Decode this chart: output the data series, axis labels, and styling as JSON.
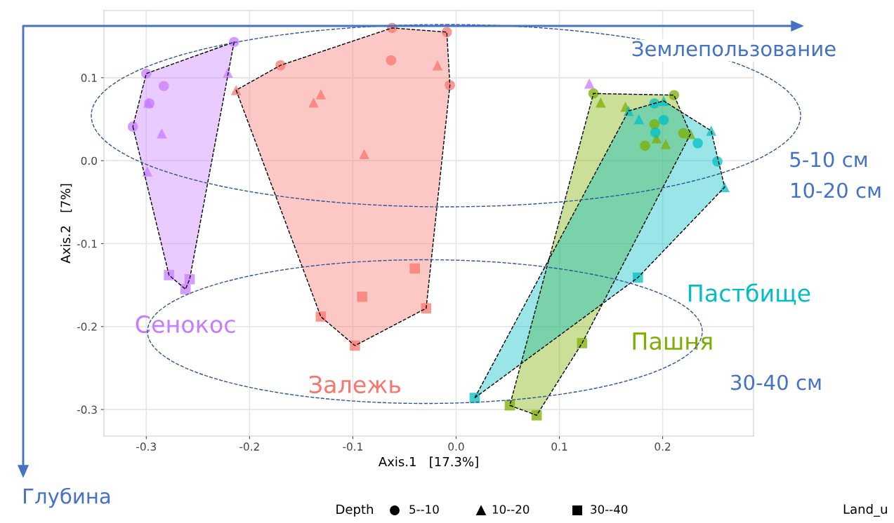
{
  "chart_data": {
    "type": "scatter",
    "xlabel": "Axis.1   [17.3%]",
    "ylabel": "Axis.2   [7%]",
    "xlim": [
      -0.341,
      0.288
    ],
    "ylim": [
      -0.332,
      0.181
    ],
    "xticks": [
      {
        "value": -0.3,
        "label": "-0.3"
      },
      {
        "value": -0.2,
        "label": "-0.2"
      },
      {
        "value": -0.1,
        "label": "-0.1"
      },
      {
        "value": 0.0,
        "label": "0.0"
      },
      {
        "value": 0.1,
        "label": "0.1"
      },
      {
        "value": 0.2,
        "label": "0.2"
      }
    ],
    "yticks": [
      {
        "value": -0.3,
        "label": "-0.3"
      },
      {
        "value": -0.2,
        "label": "-0.2"
      },
      {
        "value": -0.1,
        "label": "-0.1"
      },
      {
        "value": 0.0,
        "label": "0.0"
      },
      {
        "value": 0.1,
        "label": "0.1"
      }
    ],
    "grid": true,
    "series": [
      {
        "color": "#c77cff",
        "marker": "circle",
        "x": [
          -0.215,
          -0.3,
          -0.283,
          -0.297,
          -0.313
        ],
        "values": [
          0.143,
          0.105,
          0.09,
          0.069,
          0.041
        ]
      },
      {
        "color": "#c77cff",
        "marker": "triangle",
        "x": [
          -0.221,
          -0.298,
          -0.285,
          -0.299
        ],
        "values": [
          0.106,
          0.07,
          0.033,
          -0.013
        ]
      },
      {
        "name": "Сенокос",
        "color": "#c77cff",
        "marker": "square",
        "x": [
          -0.278,
          -0.258,
          -0.262
        ],
        "values": [
          -0.138,
          -0.143,
          -0.155
        ]
      },
      {
        "color": "#c77cff",
        "marker": "triangle",
        "x": [
          0.129
        ],
        "values": [
          0.093
        ]
      },
      {
        "color": "#f8766d",
        "marker": "circle",
        "x": [
          -0.062,
          -0.009,
          -0.063,
          -0.006,
          -0.17
        ],
        "values": [
          0.16,
          0.155,
          0.121,
          0.091,
          0.115
        ]
      },
      {
        "color": "#f8766d",
        "marker": "triangle",
        "x": [
          -0.018,
          -0.213,
          -0.131,
          -0.138,
          -0.089
        ],
        "values": [
          0.115,
          0.085,
          0.08,
          0.07,
          0.008
        ]
      },
      {
        "name": "Залежь",
        "color": "#f8766d",
        "marker": "square",
        "x": [
          -0.04,
          -0.091,
          -0.029,
          -0.131,
          -0.098
        ],
        "values": [
          -0.13,
          -0.164,
          -0.178,
          -0.188,
          -0.223
        ]
      },
      {
        "color": "#7cae00",
        "marker": "circle",
        "x": [
          0.133,
          0.211,
          0.192,
          0.22,
          0.183
        ],
        "values": [
          0.081,
          0.079,
          0.044,
          0.033,
          0.018
        ]
      },
      {
        "color": "#7cae00",
        "marker": "triangle",
        "x": [
          0.14,
          0.164,
          0.227,
          0.203,
          0.194
        ],
        "values": [
          0.07,
          0.065,
          0.032,
          0.02,
          0.027
        ]
      },
      {
        "name": "Пашня",
        "color": "#7cae00",
        "marker": "square",
        "x": [
          0.122,
          0.052,
          0.078
        ],
        "values": [
          -0.22,
          -0.295,
          -0.307
        ]
      },
      {
        "color": "#00bfc4",
        "marker": "circle",
        "x": [
          0.192,
          0.201,
          0.193,
          0.234,
          0.253
        ],
        "values": [
          0.069,
          0.049,
          0.034,
          0.021,
          -0.001
        ]
      },
      {
        "color": "#00bfc4",
        "marker": "triangle",
        "x": [
          0.201,
          0.177,
          0.247,
          0.26,
          0.167
        ],
        "values": [
          0.072,
          0.05,
          0.036,
          -0.032,
          0.06
        ]
      },
      {
        "name": "Пастбище",
        "color": "#00bfc4",
        "marker": "square",
        "x": [
          0.176,
          0.018
        ],
        "values": [
          -0.141,
          -0.286
        ]
      }
    ],
    "annotations": [
      "Землепользование",
      "Глубина",
      "5-10 см",
      "10-20 см",
      "30-40 см",
      "Land_u",
      "Depth",
      "5--10",
      "10--20",
      "30--40"
    ]
  }
}
